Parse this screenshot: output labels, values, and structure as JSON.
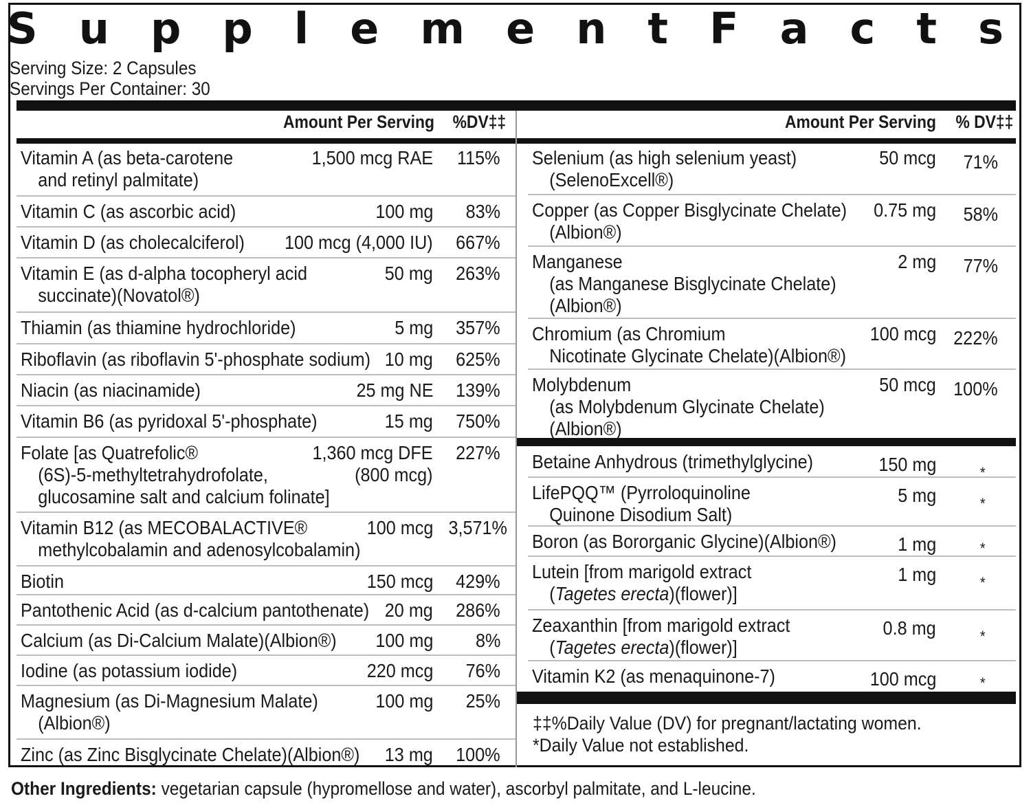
{
  "title": "Supplement Facts",
  "serving_size": "Serving Size: 2 Capsules",
  "servings_per_container": "Servings Per Container: 30",
  "left_header": {
    "amount": "Amount Per Serving",
    "dv": "%DV‡‡"
  },
  "right_header": {
    "amount": "Amount Per Serving",
    "dv": "% DV‡‡"
  },
  "left_rows": [
    {
      "name1": "Vitamin A (as beta-carotene",
      "name2": "and retinyl palmitate)",
      "amount": "1,500 mcg RAE",
      "amount2": "",
      "dv": "115%"
    },
    {
      "name1": "Vitamin C (as ascorbic acid)",
      "name2": "",
      "amount": "100 mg",
      "amount2": "",
      "dv": "83%"
    },
    {
      "name1": "Vitamin D (as cholecalciferol)",
      "name2": "",
      "amount": "100 mcg (4,000 IU)",
      "amount2": "",
      "dv": "667%"
    },
    {
      "name1": "Vitamin E (as d-alpha tocopheryl acid",
      "name2": "succinate)(Novatol®)",
      "amount": "50 mg",
      "amount2": "",
      "dv": "263%"
    },
    {
      "name1": "Thiamin (as thiamine hydrochloride)",
      "name2": "",
      "amount": "5 mg",
      "amount2": "",
      "dv": "357%"
    },
    {
      "name1": "Riboflavin (as riboflavin 5'-phosphate sodium)",
      "name2": "",
      "amount": "10 mg",
      "amount2": "",
      "dv": "625%"
    },
    {
      "name1": "Niacin (as niacinamide)",
      "name2": "",
      "amount": "25 mg NE",
      "amount2": "",
      "dv": "139%"
    },
    {
      "name1": "Vitamin B6 (as pyridoxal 5'-phosphate)",
      "name2": "",
      "amount": "15 mg",
      "amount2": "",
      "dv": "750%"
    },
    {
      "name1": "Folate [as Quatrefolic®",
      "name2": "(6S)-5-methyltetrahydrofolate,",
      "name3": "glucosamine salt and calcium folinate]",
      "amount": "1,360 mcg DFE",
      "amount2": "(800 mcg)",
      "dv": "227%"
    },
    {
      "name1": "Vitamin B12 (as MECOBALACTIVE®",
      "name2": "methylcobalamin and adenosylcobalamin)",
      "amount": "100 mcg",
      "amount2": "",
      "dv": "3,571%"
    },
    {
      "name1": "Biotin",
      "name2": "",
      "amount": "150 mcg",
      "amount2": "",
      "dv": "429%"
    },
    {
      "name1": "Pantothenic Acid (as d-calcium pantothenate)",
      "name2": "",
      "amount": "20 mg",
      "amount2": "",
      "dv": "286%"
    },
    {
      "name1": "Calcium (as Di-Calcium Malate)(Albion®)",
      "name2": "",
      "amount": "100 mg",
      "amount2": "",
      "dv": "8%"
    },
    {
      "name1": "Iodine (as potassium iodide)",
      "name2": "",
      "amount": "220 mcg",
      "amount2": "",
      "dv": "76%"
    },
    {
      "name1": "Magnesium (as Di-Magnesium Malate)",
      "name2": "(Albion®)",
      "amount": "100 mg",
      "amount2": "",
      "dv": "25%"
    },
    {
      "name1": "Zinc (as Zinc Bisglycinate Chelate)(Albion®)",
      "name2": "",
      "amount": "13 mg",
      "amount2": "",
      "dv": "100%"
    }
  ],
  "right_rows": [
    {
      "name1": "Selenium (as high selenium yeast)",
      "name2": "(SelenoExcell®)",
      "amount": "50 mcg",
      "dv": "71%"
    },
    {
      "name1": "Copper (as Copper Bisglycinate Chelate)",
      "name2": "(Albion®)",
      "amount": "0.75 mg",
      "dv": "58%"
    },
    {
      "name1": "Manganese",
      "name2": "(as Manganese Bisglycinate Chelate)",
      "name3": "(Albion®)",
      "amount": "2 mg",
      "dv": "77%"
    },
    {
      "name1": "Chromium (as Chromium",
      "name2": "Nicotinate Glycinate Chelate)(Albion®)",
      "amount": "100 mcg",
      "dv": "222%"
    },
    {
      "name1": "Molybdenum",
      "name2": "(as Molybdenum Glycinate Chelate)",
      "name3": "(Albion®)",
      "amount": "50 mcg",
      "dv": "100%"
    }
  ],
  "right_rows_b": [
    {
      "name1": "Betaine Anhydrous (trimethylglycine)",
      "name2": "",
      "amount": "150 mg",
      "dv": "*"
    },
    {
      "name1": "LifePQQ™ (Pyrroloquinoline",
      "name2": "Quinone Disodium Salt)",
      "amount": "5 mg",
      "dv": "*"
    },
    {
      "name1": "Boron (as Bororganic Glycine)(Albion®)",
      "name2": "",
      "amount": "1 mg",
      "dv": "*"
    },
    {
      "name1": "Lutein [from marigold extract",
      "name2": "(Tagetes erecta)(flower)]",
      "amount": "1 mg",
      "dv": "*"
    },
    {
      "name1": "Zeaxanthin [from marigold extract",
      "name2": "(Tagetes erecta)(flower)]",
      "amount": "0.8 mg",
      "dv": "*"
    },
    {
      "name1": "Vitamin K2 (as menaquinone-7)",
      "name2": "",
      "amount": "100 mcg",
      "dv": "*"
    }
  ],
  "footnotes": {
    "dv_note": "‡‡%Daily Value (DV) for pregnant/lactating women.",
    "star_note": "*Daily Value not established."
  },
  "other_ingredients": {
    "label": "Other Ingredients:",
    "text": " vegetarian capsule (hypromellose and water), ascorbyl palmitate, and L-leucine."
  }
}
